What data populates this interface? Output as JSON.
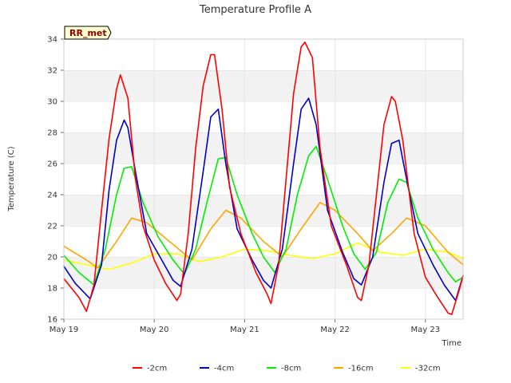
{
  "chart_data": {
    "type": "line",
    "title": "Temperature Profile A",
    "xlabel": "Time",
    "ylabel": "Temperature (C)",
    "badge": "RR_met",
    "x_range": [
      "2024-05-19 00:00",
      "2024-05-23 10:00"
    ],
    "x_ticks": [
      "May 19",
      "May 20",
      "May 21",
      "May 22",
      "May 23"
    ],
    "ylim": [
      16,
      34
    ],
    "y_ticks": [
      16,
      18,
      20,
      22,
      24,
      26,
      28,
      30,
      32,
      34
    ],
    "grid": "horizontal bands",
    "legend_position": "bottom",
    "series": [
      {
        "name": "-2cm",
        "color": "#ff0000",
        "x": [
          "2024-05-19 00:00",
          "2024-05-19 04:00",
          "2024-05-19 06:00",
          "2024-05-19 08:00",
          "2024-05-19 10:00",
          "2024-05-19 12:00",
          "2024-05-19 14:00",
          "2024-05-19 15:00",
          "2024-05-19 17:00",
          "2024-05-19 19:00",
          "2024-05-19 21:00",
          "2024-05-20 00:00",
          "2024-05-20 03:00",
          "2024-05-20 06:00",
          "2024-05-20 07:00",
          "2024-05-20 09:00",
          "2024-05-20 11:00",
          "2024-05-20 13:00",
          "2024-05-20 15:00",
          "2024-05-20 16:00",
          "2024-05-20 18:00",
          "2024-05-20 20:00",
          "2024-05-20 23:00",
          "2024-05-21 03:00",
          "2024-05-21 06:00",
          "2024-05-21 07:00",
          "2024-05-21 09:00",
          "2024-05-21 11:00",
          "2024-05-21 13:00",
          "2024-05-21 15:00",
          "2024-05-21 16:00",
          "2024-05-21 18:00",
          "2024-05-21 20:00",
          "2024-05-21 23:00",
          "2024-05-22 03:00",
          "2024-05-22 06:00",
          "2024-05-22 07:00",
          "2024-05-22 09:00",
          "2024-05-22 11:00",
          "2024-05-22 13:00",
          "2024-05-22 15:00",
          "2024-05-22 16:00",
          "2024-05-22 18:00",
          "2024-05-22 21:00",
          "2024-05-23 00:00",
          "2024-05-23 03:00",
          "2024-05-23 06:00",
          "2024-05-23 07:00",
          "2024-05-23 09:00",
          "2024-05-23 10:00"
        ],
        "y": [
          18.6,
          17.4,
          16.5,
          18.2,
          23.0,
          27.6,
          30.8,
          31.7,
          30.2,
          25.0,
          22.0,
          19.8,
          18.3,
          17.2,
          17.6,
          21.5,
          27.0,
          31.0,
          33.0,
          33.0,
          29.5,
          24.5,
          21.5,
          19.0,
          17.6,
          17.0,
          19.5,
          25.0,
          30.5,
          33.5,
          33.8,
          32.8,
          27.0,
          22.0,
          19.5,
          17.4,
          17.2,
          19.5,
          24.0,
          28.5,
          30.3,
          30.0,
          27.5,
          21.5,
          18.7,
          17.5,
          16.4,
          16.3,
          17.9,
          18.8
        ]
      },
      {
        "name": "-4cm",
        "color": "#0000cc",
        "x": [
          "2024-05-19 00:00",
          "2024-05-19 03:00",
          "2024-05-19 07:00",
          "2024-05-19 10:00",
          "2024-05-19 12:00",
          "2024-05-19 14:00",
          "2024-05-19 16:00",
          "2024-05-19 17:00",
          "2024-05-19 19:00",
          "2024-05-19 22:00",
          "2024-05-20 02:00",
          "2024-05-20 05:00",
          "2024-05-20 07:00",
          "2024-05-20 10:00",
          "2024-05-20 13:00",
          "2024-05-20 15:00",
          "2024-05-20 17:00",
          "2024-05-20 19:00",
          "2024-05-20 22:00",
          "2024-05-21 02:00",
          "2024-05-21 05:00",
          "2024-05-21 07:00",
          "2024-05-21 10:00",
          "2024-05-21 13:00",
          "2024-05-21 15:00",
          "2024-05-21 17:00",
          "2024-05-21 19:00",
          "2024-05-21 22:00",
          "2024-05-22 02:00",
          "2024-05-22 05:00",
          "2024-05-22 07:00",
          "2024-05-22 10:00",
          "2024-05-22 13:00",
          "2024-05-22 15:00",
          "2024-05-22 17:00",
          "2024-05-22 19:00",
          "2024-05-22 22:00",
          "2024-05-23 02:00",
          "2024-05-23 05:00",
          "2024-05-23 08:00",
          "2024-05-23 10:00"
        ],
        "y": [
          19.4,
          18.3,
          17.3,
          19.5,
          24.3,
          27.5,
          28.8,
          28.3,
          25.5,
          21.5,
          19.8,
          18.5,
          18.1,
          20.5,
          25.5,
          29.0,
          29.5,
          26.0,
          21.8,
          19.8,
          18.5,
          18.0,
          20.5,
          26.0,
          29.5,
          30.2,
          28.5,
          23.0,
          20.3,
          18.6,
          18.2,
          20.0,
          24.8,
          27.3,
          27.5,
          25.0,
          21.5,
          19.5,
          18.2,
          17.2,
          18.8
        ]
      },
      {
        "name": "-8cm",
        "color": "#00ee00",
        "x": [
          "2024-05-19 00:00",
          "2024-05-19 04:00",
          "2024-05-19 08:00",
          "2024-05-19 11:00",
          "2024-05-19 14:00",
          "2024-05-19 16:00",
          "2024-05-19 18:00",
          "2024-05-19 21:00",
          "2024-05-20 01:00",
          "2024-05-20 05:00",
          "2024-05-20 08:00",
          "2024-05-20 11:00",
          "2024-05-20 14:00",
          "2024-05-20 17:00",
          "2024-05-20 19:00",
          "2024-05-20 22:00",
          "2024-05-21 02:00",
          "2024-05-21 05:00",
          "2024-05-21 08:00",
          "2024-05-21 11:00",
          "2024-05-21 14:00",
          "2024-05-21 17:00",
          "2024-05-21 19:00",
          "2024-05-21 22:00",
          "2024-05-22 02:00",
          "2024-05-22 05:00",
          "2024-05-22 08:00",
          "2024-05-22 11:00",
          "2024-05-22 14:00",
          "2024-05-22 17:00",
          "2024-05-22 19:00",
          "2024-05-22 22:00",
          "2024-05-23 02:00",
          "2024-05-23 06:00",
          "2024-05-23 08:00",
          "2024-05-23 10:00"
        ],
        "y": [
          20.1,
          19.0,
          18.2,
          20.5,
          24.0,
          25.7,
          25.8,
          23.5,
          21.3,
          19.8,
          18.9,
          20.5,
          23.5,
          26.3,
          26.4,
          24.0,
          21.5,
          20.0,
          19.0,
          20.5,
          24.0,
          26.5,
          27.1,
          25.0,
          22.0,
          20.2,
          19.2,
          20.3,
          23.5,
          25.0,
          24.8,
          22.5,
          20.5,
          19.0,
          18.4,
          18.7
        ]
      },
      {
        "name": "-16cm",
        "color": "#ffa500",
        "x": [
          "2024-05-19 00:00",
          "2024-05-19 06:00",
          "2024-05-19 09:00",
          "2024-05-19 14:00",
          "2024-05-19 18:00",
          "2024-05-19 22:00",
          "2024-05-20 04:00",
          "2024-05-20 10:00",
          "2024-05-20 15:00",
          "2024-05-20 19:00",
          "2024-05-20 23:00",
          "2024-05-21 05:00",
          "2024-05-21 10:00",
          "2024-05-21 15:00",
          "2024-05-21 20:00",
          "2024-05-22 00:00",
          "2024-05-22 06:00",
          "2024-05-22 10:00",
          "2024-05-22 15:00",
          "2024-05-22 19:00",
          "2024-05-23 00:00",
          "2024-05-23 06:00",
          "2024-05-23 10:00"
        ],
        "y": [
          20.7,
          19.8,
          19.3,
          21.0,
          22.5,
          22.2,
          21.0,
          19.8,
          21.8,
          23.0,
          22.5,
          21.0,
          20.0,
          21.8,
          23.5,
          23.0,
          21.5,
          20.4,
          21.5,
          22.5,
          22.0,
          20.3,
          19.5
        ]
      },
      {
        "name": "-32cm",
        "color": "#ffff00",
        "x": [
          "2024-05-19 00:00",
          "2024-05-19 06:00",
          "2024-05-19 12:00",
          "2024-05-19 18:00",
          "2024-05-20 00:00",
          "2024-05-20 06:00",
          "2024-05-20 12:00",
          "2024-05-20 18:00",
          "2024-05-21 00:00",
          "2024-05-21 06:00",
          "2024-05-21 12:00",
          "2024-05-21 18:00",
          "2024-05-22 00:00",
          "2024-05-22 06:00",
          "2024-05-22 12:00",
          "2024-05-22 18:00",
          "2024-05-23 00:00",
          "2024-05-23 06:00",
          "2024-05-23 10:00"
        ],
        "y": [
          19.8,
          19.5,
          19.2,
          19.6,
          20.2,
          20.2,
          19.7,
          20.0,
          20.5,
          20.4,
          20.1,
          19.9,
          20.2,
          20.9,
          20.3,
          20.1,
          20.5,
          20.3,
          19.9
        ]
      }
    ]
  }
}
